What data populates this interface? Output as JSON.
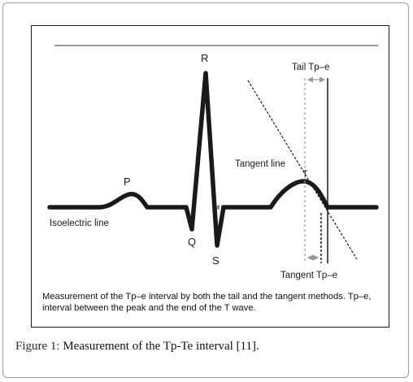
{
  "diagram": {
    "labels": {
      "p": "P",
      "q": "Q",
      "r": "R",
      "s": "S",
      "t": "T",
      "isoelectric": "Isoelectric line",
      "tangent_line": "Tangent line",
      "tail_tpe": "Tail Tp–e",
      "tangent_tpe": "Tangent Tp–e"
    },
    "caption": "Measurement of the Tp–e interval by both the tail and the tangent methods. Tp–e, interval between the peak and the end of the T wave."
  },
  "figure_caption": {
    "label": "Figure 1:",
    "text": " Measurement of the Tp-Te interval [11]."
  },
  "colors": {
    "waveform": "#1a1a1a",
    "top_rule": "#9a9a9a",
    "isoelectric_dash": "#8a8a8a",
    "measure_arrow": "#9a9a9a"
  }
}
